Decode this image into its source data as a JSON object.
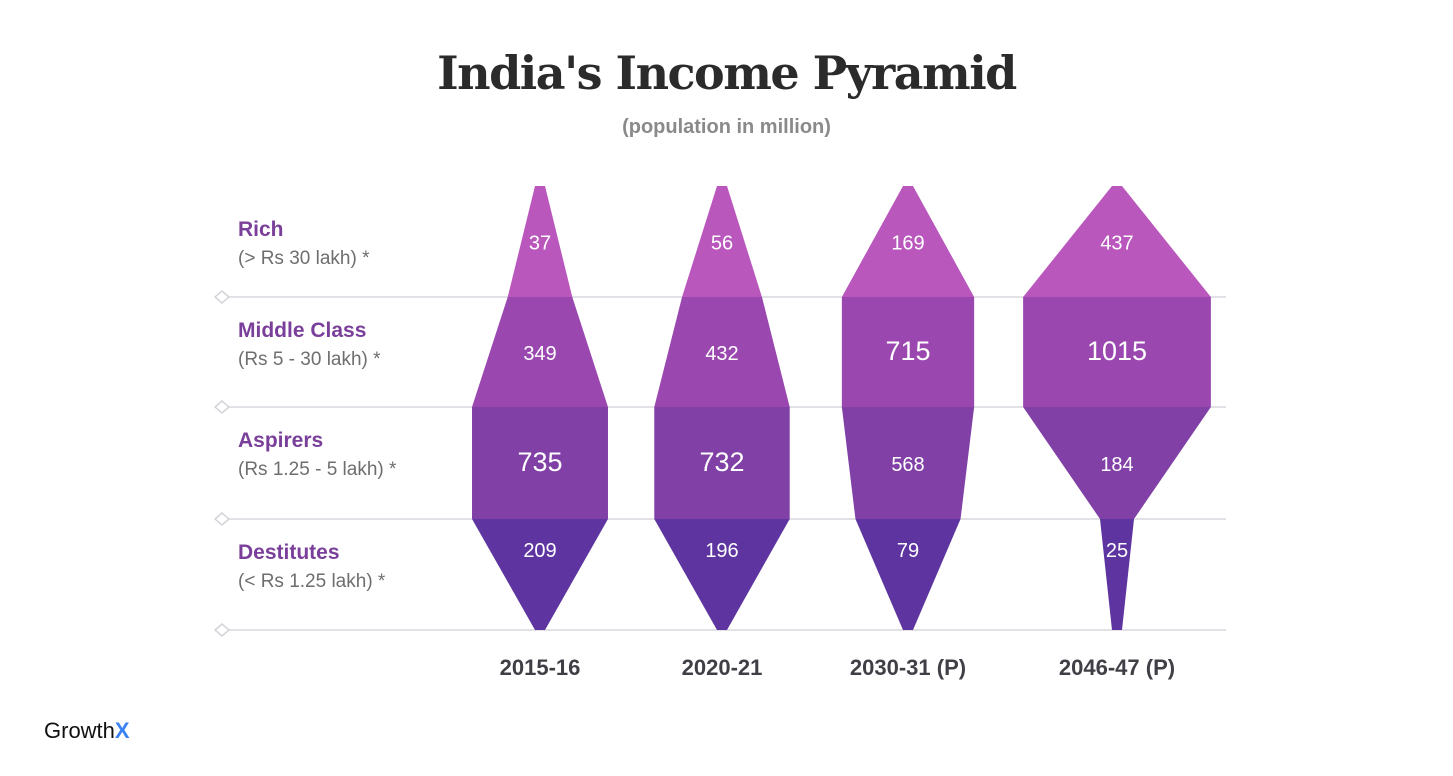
{
  "title": "India's Income Pyramid",
  "subtitle": "(population in million)",
  "brand": {
    "name": "Growth",
    "accent": "X"
  },
  "colors": {
    "rich": "#b957bd",
    "middle": "#9a48b0",
    "aspirers": "#8040a6",
    "destitutes": "#5e35a0",
    "gridline": "#e2e2e6",
    "row_label": "#7a3f9a"
  },
  "chart_data": {
    "type": "area",
    "categories": [
      "2015-16",
      "2020-21",
      "2030-31 (P)",
      "2046-47 (P)"
    ],
    "series": [
      {
        "name": "Rich",
        "range": "(> Rs 30 lakh) *",
        "values": [
          37,
          56,
          169,
          437
        ]
      },
      {
        "name": "Middle Class",
        "range": "(Rs 5 - 30 lakh) *",
        "values": [
          349,
          432,
          715,
          1015
        ]
      },
      {
        "name": "Aspirers",
        "range": "(Rs 1.25 - 5 lakh) *",
        "values": [
          735,
          732,
          568,
          184
        ]
      },
      {
        "name": "Destitutes",
        "range": "(< Rs 1.25 lakh) *",
        "values": [
          209,
          196,
          79,
          25
        ]
      }
    ],
    "grid": true
  }
}
